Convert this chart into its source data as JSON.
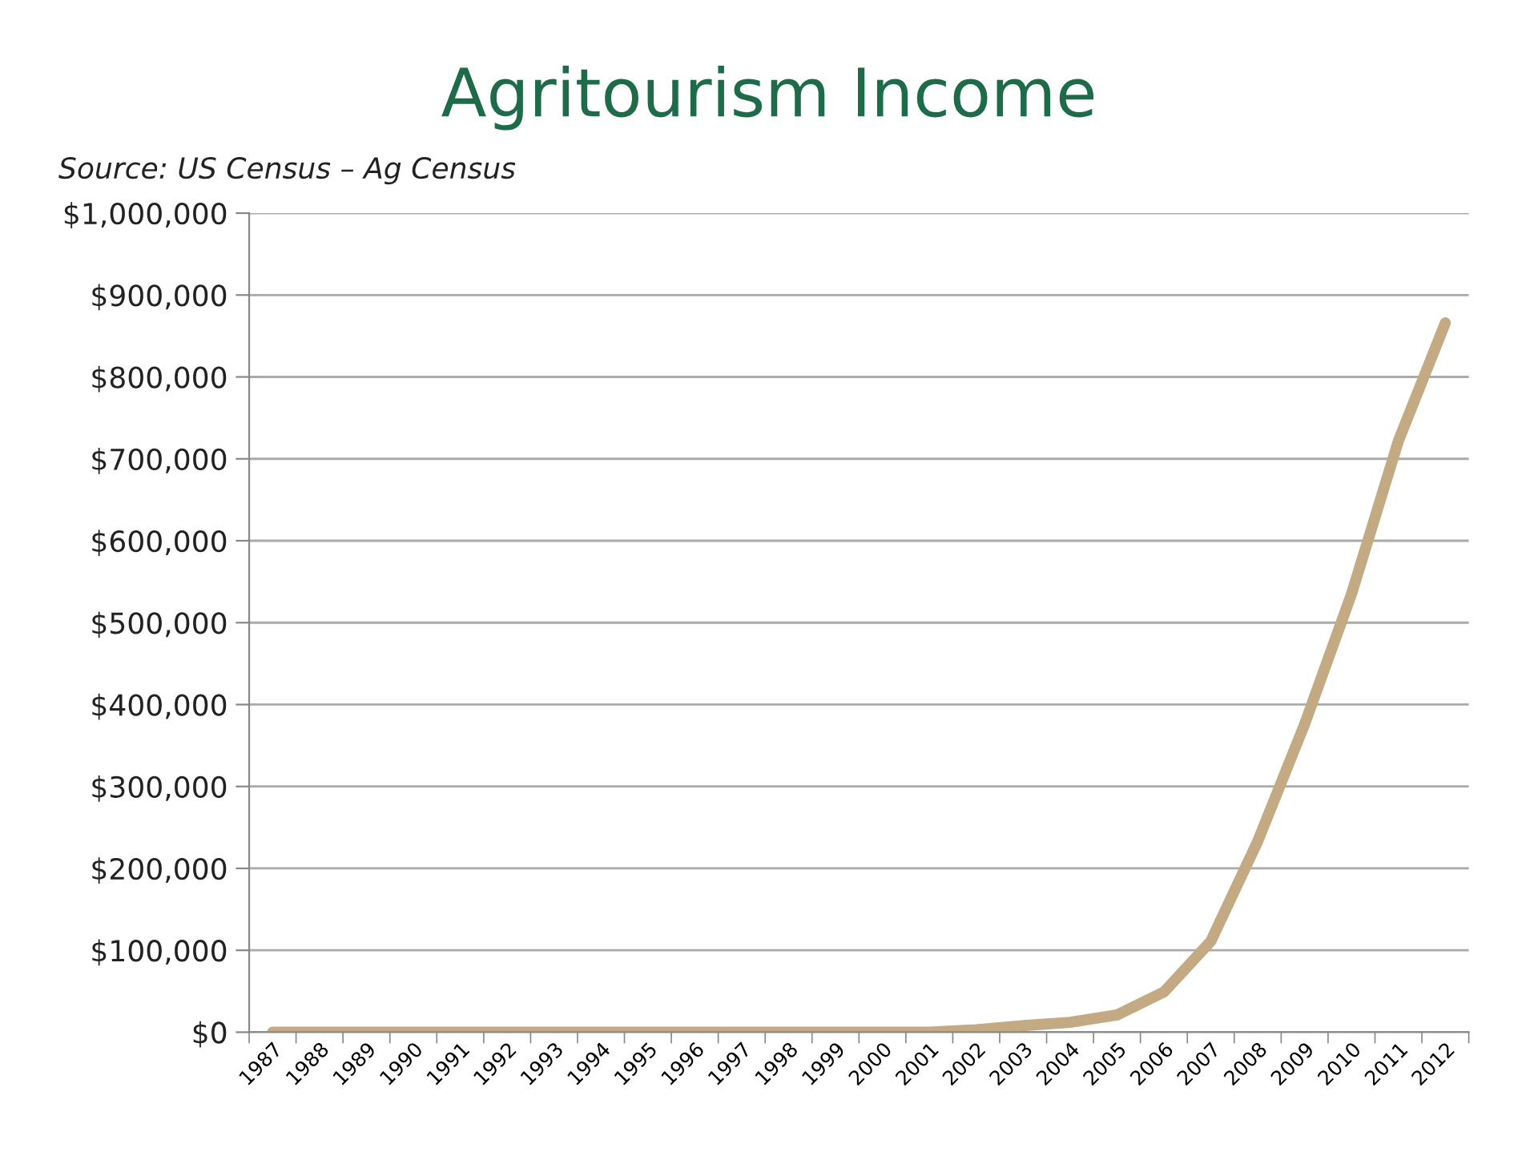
{
  "chart_data": {
    "type": "line",
    "title": "Agritourism Income",
    "annotations": [
      "Source: US Census – Ag Census"
    ],
    "categories": [
      "1987",
      "1988",
      "1989",
      "1990",
      "1991",
      "1992",
      "1993",
      "1994",
      "1995",
      "1996",
      "1997",
      "1998",
      "1999",
      "2000",
      "2001",
      "2002",
      "2003",
      "2004",
      "2005",
      "2006",
      "2007",
      "2008",
      "2009",
      "2010",
      "2011",
      "2012"
    ],
    "series": [
      {
        "color": "#c4aa82",
        "values": [
          0,
          0,
          0,
          0,
          0,
          0,
          0,
          0,
          0,
          0,
          0,
          0,
          0,
          0,
          0,
          3000,
          8000,
          12000,
          21000,
          49000,
          111000,
          233000,
          376000,
          535000,
          722000,
          866000
        ]
      }
    ],
    "ylim": [
      0,
      1000000
    ],
    "yticks": [
      {
        "value": 0,
        "label": "$0"
      },
      {
        "value": 100000,
        "label": "$100,000"
      },
      {
        "value": 200000,
        "label": "$200,000"
      },
      {
        "value": 300000,
        "label": "$300,000"
      },
      {
        "value": 400000,
        "label": "$400,000"
      },
      {
        "value": 500000,
        "label": "$500,000"
      },
      {
        "value": 600000,
        "label": "$600,000"
      },
      {
        "value": 700000,
        "label": "$700,000"
      },
      {
        "value": 800000,
        "label": "$800,000"
      },
      {
        "value": 900000,
        "label": "$900,000"
      },
      {
        "value": 1000000,
        "label": "$1,000,000"
      }
    ],
    "grid": "y",
    "legend": false,
    "marker": "none",
    "line_style": "solid"
  }
}
